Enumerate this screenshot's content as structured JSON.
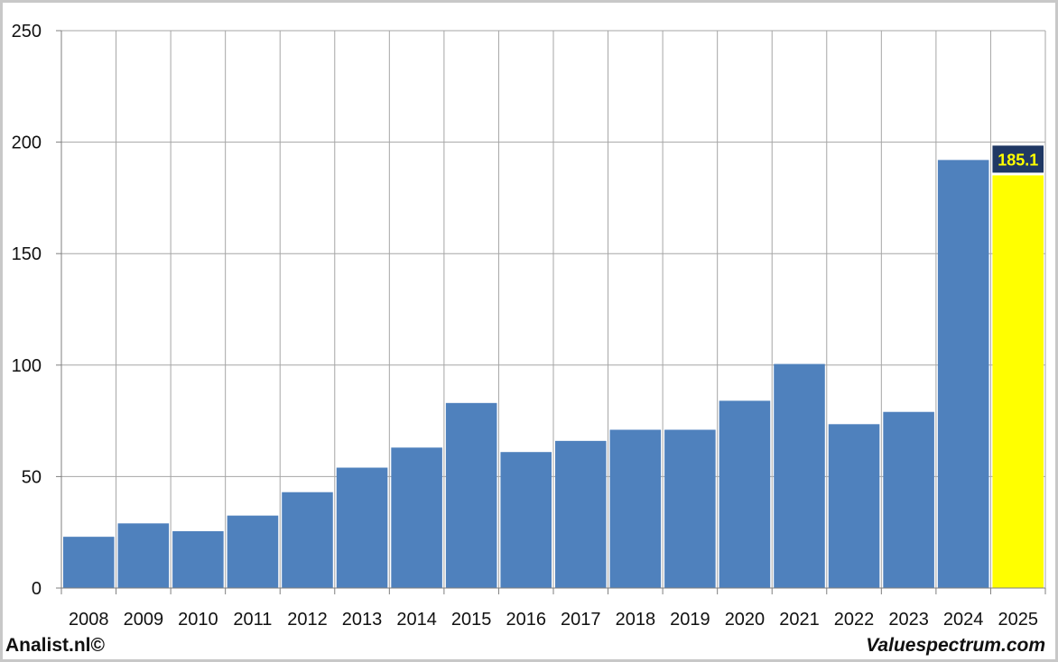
{
  "chart_data": {
    "type": "bar",
    "categories": [
      "2008",
      "2009",
      "2010",
      "2011",
      "2012",
      "2013",
      "2014",
      "2015",
      "2016",
      "2017",
      "2018",
      "2019",
      "2020",
      "2021",
      "2022",
      "2023",
      "2024",
      "2025"
    ],
    "values": [
      23,
      29,
      25.5,
      32.5,
      43,
      54,
      63,
      83,
      61,
      66,
      71,
      71,
      84,
      100.5,
      73.5,
      79,
      192,
      185.1
    ],
    "ylim": [
      0,
      250
    ],
    "yticks": [
      0,
      50,
      100,
      150,
      200,
      250
    ],
    "grid": true,
    "highlight": {
      "index": 17,
      "label": "185.1"
    },
    "colors": {
      "bar": "#4f81bd",
      "highlight_bar": "#ffff00",
      "highlight_label_bg": "#1f3864",
      "highlight_label_text": "#ffff00",
      "grid": "#a6a6a6"
    }
  },
  "footer": {
    "left": "Analist.nl©",
    "right": "Valuespectrum.com"
  }
}
